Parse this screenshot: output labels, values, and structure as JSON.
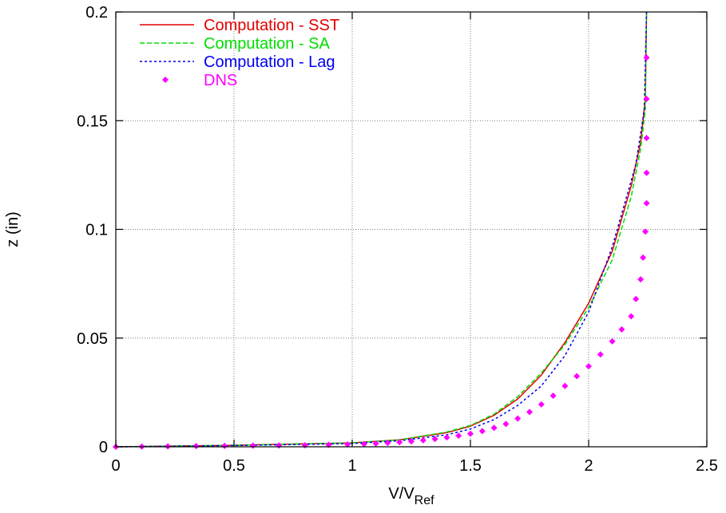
{
  "chart_data": {
    "type": "line",
    "xlabel_main": "V/V",
    "xlabel_sub": "Ref",
    "ylabel": "z (in)",
    "xlim": [
      0,
      2.5
    ],
    "ylim": [
      0,
      0.2
    ],
    "xticks": [
      "0",
      "0.5",
      "1",
      "1.5",
      "2",
      "2.5"
    ],
    "yticks": [
      "0",
      "0.05",
      "0.1",
      "0.15",
      "0.2"
    ],
    "grid": true,
    "legend_position": "top-left",
    "series": [
      {
        "name": "Computation - SST",
        "style": "solid",
        "color": "#e00000",
        "x": [
          0.0,
          0.5,
          1.0,
          1.2,
          1.4,
          1.5,
          1.6,
          1.7,
          1.8,
          1.9,
          2.0,
          2.1,
          2.18,
          2.22,
          2.24,
          2.245
        ],
        "y": [
          0.0,
          0.0007,
          0.0018,
          0.0032,
          0.0065,
          0.0095,
          0.0145,
          0.022,
          0.033,
          0.048,
          0.066,
          0.09,
          0.12,
          0.14,
          0.16,
          0.2
        ]
      },
      {
        "name": "Computation - SA",
        "style": "dashed",
        "color": "#00dd00",
        "x": [
          0.0,
          0.5,
          1.0,
          1.2,
          1.4,
          1.5,
          1.6,
          1.7,
          1.8,
          1.9,
          2.0,
          2.1,
          2.18,
          2.22,
          2.24,
          2.245
        ],
        "y": [
          0.0,
          0.0007,
          0.0018,
          0.0032,
          0.0068,
          0.0098,
          0.015,
          0.023,
          0.034,
          0.047,
          0.064,
          0.086,
          0.115,
          0.137,
          0.155,
          0.2
        ]
      },
      {
        "name": "Computation - Lag",
        "style": "dotted",
        "color": "#0000ee",
        "x": [
          0.0,
          0.5,
          1.0,
          1.2,
          1.4,
          1.5,
          1.6,
          1.7,
          1.8,
          1.9,
          2.0,
          2.1,
          2.2,
          2.235,
          2.245
        ],
        "y": [
          0.0,
          0.0006,
          0.0015,
          0.0028,
          0.0055,
          0.0082,
          0.0125,
          0.019,
          0.028,
          0.042,
          0.062,
          0.092,
          0.13,
          0.155,
          0.2
        ]
      },
      {
        "name": "DNS",
        "style": "diamond-markers",
        "color": "#ff00ff",
        "x": [
          0.0,
          0.11,
          0.22,
          0.34,
          0.46,
          0.58,
          0.69,
          0.8,
          0.9,
          0.98,
          1.05,
          1.1,
          1.15,
          1.2,
          1.25,
          1.3,
          1.35,
          1.4,
          1.45,
          1.5,
          1.55,
          1.6,
          1.65,
          1.7,
          1.75,
          1.8,
          1.85,
          1.9,
          1.95,
          2.0,
          2.05,
          2.1,
          2.14,
          2.18,
          2.2,
          2.22,
          2.23,
          2.24,
          2.245,
          2.245,
          2.245,
          2.245,
          2.245
        ],
        "y": [
          0.0,
          0.0001,
          0.0002,
          0.0003,
          0.0004,
          0.0005,
          0.0006,
          0.0007,
          0.0009,
          0.0011,
          0.0013,
          0.0015,
          0.0018,
          0.0021,
          0.0025,
          0.003,
          0.0036,
          0.0043,
          0.0051,
          0.006,
          0.0072,
          0.0087,
          0.0105,
          0.013,
          0.016,
          0.0195,
          0.0235,
          0.028,
          0.0325,
          0.037,
          0.0425,
          0.0485,
          0.054,
          0.06,
          0.068,
          0.077,
          0.087,
          0.099,
          0.112,
          0.126,
          0.142,
          0.16,
          0.179
        ]
      }
    ]
  }
}
